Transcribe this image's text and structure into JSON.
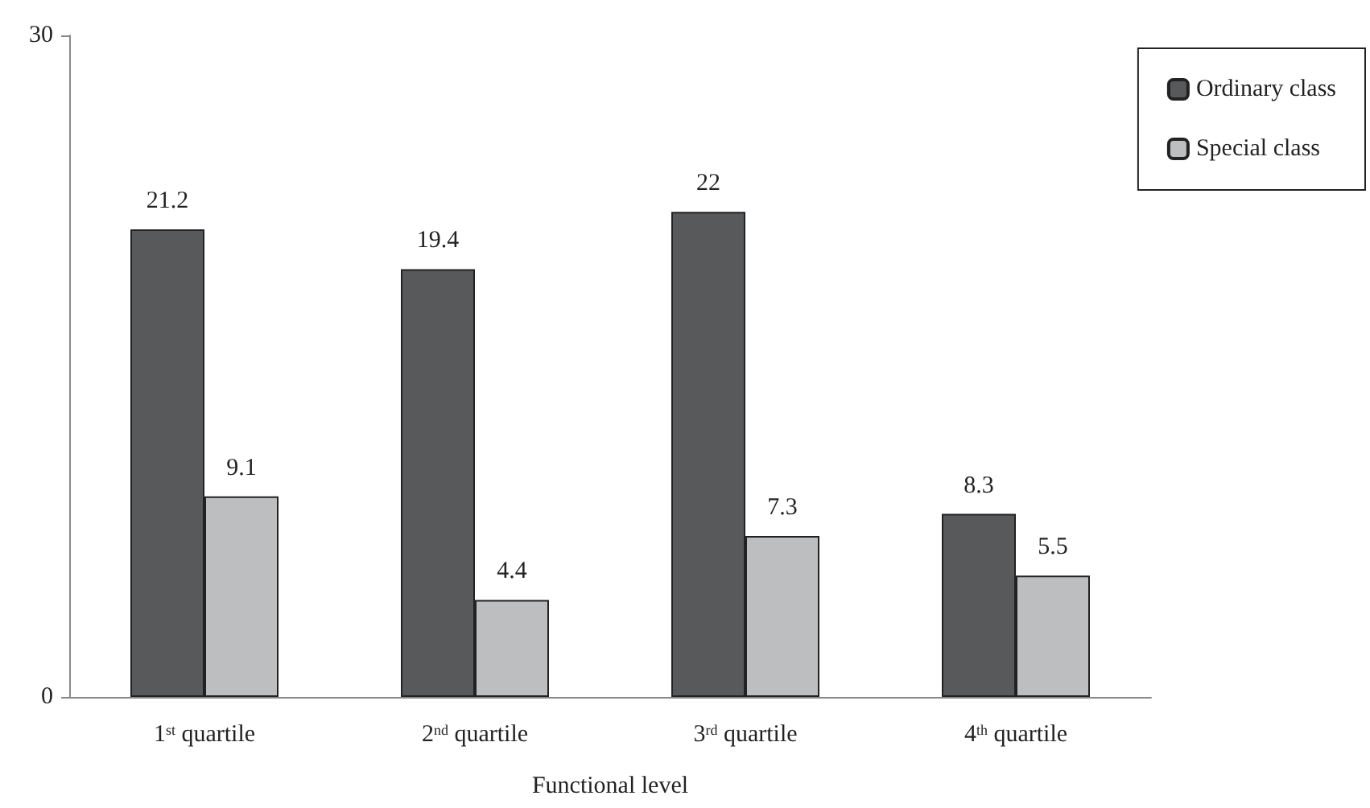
{
  "chart_data": {
    "type": "bar",
    "xlabel": "Functional level",
    "categories": [
      "1$^{st}$ quartile",
      "2$^{nd}$ quartile",
      "3$^{rd}$ quartile",
      "4$^{th}$ quartile"
    ],
    "series": [
      {
        "name": "Ordinary class",
        "color": "#58595b",
        "values": [
          21.2,
          19.4,
          22,
          8.3
        ]
      },
      {
        "name": "Special class",
        "color": "#bcbec0",
        "values": [
          9.1,
          4.4,
          7.3,
          5.5
        ]
      }
    ],
    "ylim": [
      0,
      30
    ],
    "yticks": [
      0,
      30
    ],
    "grid": false,
    "legend": "top right",
    "data_labels": true
  }
}
